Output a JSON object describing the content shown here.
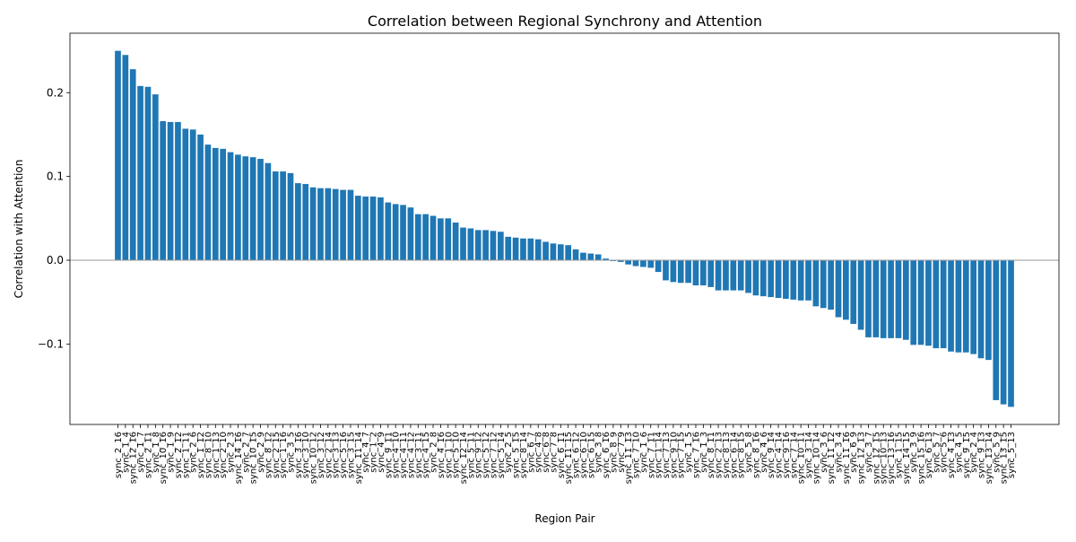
{
  "chart_data": {
    "type": "bar",
    "title": "Correlation between Regional Synchrony and Attention",
    "xlabel": "Region Pair",
    "ylabel": "Correlation with Attention",
    "color": "#1f77b4",
    "reference_line": 0,
    "categories": [
      "sync_2_16",
      "sync_1_4",
      "sync_12_16",
      "sync_1_7",
      "sync_2_11",
      "sync_1_8",
      "sync_10_16",
      "sync_1_9",
      "sync_2_12",
      "sync_1_11",
      "sync_2_6",
      "sync_1_12",
      "sync_8_10",
      "sync_1_13",
      "sync_2_10",
      "sync_2_3",
      "sync_14_16",
      "sync_2_7",
      "sync_10_15",
      "sync_2_9",
      "sync_8_12",
      "sync_2_15",
      "sync_1_16",
      "sync_3_5",
      "sync_3_16",
      "sync_3_10",
      "sync_10_12",
      "sync_3_12",
      "sync_2_14",
      "sync_3_13",
      "sync_5_16",
      "sync_3_15",
      "sync_11_14",
      "sync_4_7",
      "sync_1_2",
      "sync_4_9",
      "sync_9_11",
      "sync_4_10",
      "sync_4_11",
      "sync_4_12",
      "sync_3_11",
      "sync_4_15",
      "sync_2_8",
      "sync_4_16",
      "sync_1_10",
      "sync_5_10",
      "sync_12_14",
      "sync_5_11",
      "sync_9_12",
      "sync_5_12",
      "sync_7_12",
      "sync_5_14",
      "sync_2_5",
      "sync_5_15",
      "sync_8_14",
      "sync_6_7",
      "sync_4_8",
      "sync_6_8",
      "sync_7_8",
      "sync_6_11",
      "sync_11_15",
      "sync_6_12",
      "sync_6_10",
      "sync_6_15",
      "sync_3_8",
      "sync_6_16",
      "sync_8_9",
      "sync_7_9",
      "sync_11_13",
      "sync_7_10",
      "sync_1_6",
      "sync_7_11",
      "sync_1_14",
      "sync_7_13",
      "sync_9_10",
      "sync_7_15",
      "sync_1_5",
      "sync_7_16",
      "sync_1_3",
      "sync_8_11",
      "sync_2_13",
      "sync_8_13",
      "sync_6_14",
      "sync_8_15",
      "sync_5_8",
      "sync_8_16",
      "sync_4_6",
      "sync_9_14",
      "sync_4_14",
      "sync_9_16",
      "sync_7_14",
      "sync_10_11",
      "sync_3_14",
      "sync_10_14",
      "sync_3_6",
      "sync_11_12",
      "sync_3_4",
      "sync_11_16",
      "sync_6_9",
      "sync_12_13",
      "sync_3_7",
      "sync_12_15",
      "sync_10_13",
      "sync_13_16",
      "sync_1_15",
      "sync_14_15",
      "sync_3_9",
      "sync_15_16",
      "sync_6_13",
      "sync_5_7",
      "sync_5_6",
      "sync_4_13",
      "sync_4_5",
      "sync_9_15",
      "sync_2_4",
      "sync_9_13",
      "sync_13_14",
      "sync_5_9",
      "sync_13_15",
      "sync_5_13"
    ],
    "values": [
      0.25,
      0.245,
      0.228,
      0.208,
      0.207,
      0.198,
      0.166,
      0.165,
      0.165,
      0.157,
      0.156,
      0.15,
      0.138,
      0.134,
      0.133,
      0.129,
      0.126,
      0.124,
      0.123,
      0.121,
      0.116,
      0.106,
      0.106,
      0.104,
      0.092,
      0.091,
      0.087,
      0.086,
      0.086,
      0.085,
      0.084,
      0.084,
      0.077,
      0.076,
      0.076,
      0.075,
      0.069,
      0.067,
      0.066,
      0.063,
      0.055,
      0.055,
      0.053,
      0.05,
      0.05,
      0.045,
      0.039,
      0.038,
      0.036,
      0.036,
      0.035,
      0.034,
      0.028,
      0.027,
      0.026,
      0.026,
      0.025,
      0.022,
      0.02,
      0.019,
      0.018,
      0.013,
      0.009,
      0.008,
      0.007,
      0.002,
      -0.001,
      -0.002,
      -0.005,
      -0.007,
      -0.008,
      -0.009,
      -0.014,
      -0.024,
      -0.026,
      -0.027,
      -0.027,
      -0.03,
      -0.03,
      -0.032,
      -0.036,
      -0.036,
      -0.036,
      -0.036,
      -0.039,
      -0.042,
      -0.043,
      -0.044,
      -0.045,
      -0.046,
      -0.047,
      -0.048,
      -0.048,
      -0.055,
      -0.057,
      -0.059,
      -0.068,
      -0.071,
      -0.076,
      -0.083,
      -0.092,
      -0.092,
      -0.093,
      -0.093,
      -0.093,
      -0.095,
      -0.101,
      -0.101,
      -0.102,
      -0.105,
      -0.105,
      -0.109,
      -0.11,
      -0.11,
      -0.112,
      -0.117,
      -0.119,
      -0.167,
      -0.172,
      -0.175
    ],
    "ylim": [
      -0.196,
      0.271
    ],
    "yticks": [
      {
        "value": -0.1,
        "label": "−0.1"
      },
      {
        "value": 0,
        "label": "0.0"
      },
      0.1,
      0.2
    ]
  }
}
